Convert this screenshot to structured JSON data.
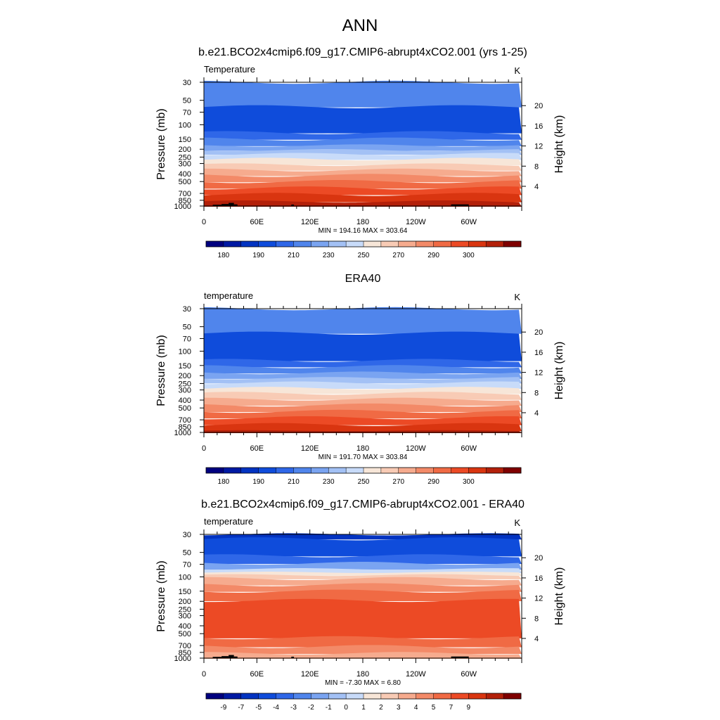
{
  "figure": {
    "title": "ANN"
  },
  "colors": {
    "temperature_scale": [
      "#00007f",
      "#0019a3",
      "#0233c1",
      "#0f4cdb",
      "#2f67e8",
      "#5085ec",
      "#7aa4f1",
      "#a3c1f5",
      "#c8dbf9",
      "#f7e6d8",
      "#f8cbb5",
      "#f6ab8e",
      "#f38a68",
      "#f06a44",
      "#ec4a25",
      "#d93510",
      "#b3200a",
      "#7f0000"
    ],
    "difference_scale": [
      "#00007f",
      "#0019a3",
      "#0233c1",
      "#0f4cdb",
      "#2f67e8",
      "#5085ec",
      "#7aa4f1",
      "#a3c1f5",
      "#c8dbf9",
      "#f7e6d8",
      "#f8cbb5",
      "#f6ab8e",
      "#f38a68",
      "#f06a44",
      "#ec4a25",
      "#d93510",
      "#b3200a",
      "#7f0000"
    ],
    "terrain": "#000000"
  },
  "chart_data": [
    {
      "type": "heatmap",
      "title": "b.e21.BCO2x4cmip6.f09_g17.CMIP6-abrupt4xCO2.001 (yrs 1-25)",
      "variable_label": "Temperature",
      "units": "K",
      "ylabel": "Pressure (mb)",
      "y2label": "Height (km)",
      "x_ticks": [
        "0",
        "60E",
        "120E",
        "180",
        "120W",
        "60W"
      ],
      "y_ticks": [
        30,
        50,
        70,
        100,
        150,
        200,
        250,
        300,
        400,
        500,
        700,
        850,
        1000
      ],
      "y2_ticks": [
        4,
        8,
        12,
        16,
        20
      ],
      "ylim": [
        30,
        1000
      ],
      "y_scale": "log",
      "stats": "MIN = 194.16  MAX = 303.64",
      "min": 194.16,
      "max": 303.64,
      "colorbar_labels": [
        "180",
        "190",
        "210",
        "230",
        "250",
        "270",
        "290",
        "300"
      ],
      "layers": [
        {
          "p_top": 30,
          "p_bottom": 60,
          "band": 5
        },
        {
          "p_top": 60,
          "p_bottom": 125,
          "band": 3
        },
        {
          "p_top": 125,
          "p_bottom": 150,
          "band": 4
        },
        {
          "p_top": 150,
          "p_bottom": 180,
          "band": 5
        },
        {
          "p_top": 180,
          "p_bottom": 205,
          "band": 6
        },
        {
          "p_top": 205,
          "p_bottom": 230,
          "band": 7
        },
        {
          "p_top": 230,
          "p_bottom": 265,
          "band": 8
        },
        {
          "p_top": 265,
          "p_bottom": 310,
          "band": 9
        },
        {
          "p_top": 310,
          "p_bottom": 360,
          "band": 10
        },
        {
          "p_top": 360,
          "p_bottom": 420,
          "band": 11
        },
        {
          "p_top": 420,
          "p_bottom": 500,
          "band": 12
        },
        {
          "p_top": 500,
          "p_bottom": 600,
          "band": 13
        },
        {
          "p_top": 600,
          "p_bottom": 720,
          "band": 14
        },
        {
          "p_top": 720,
          "p_bottom": 880,
          "band": 15
        },
        {
          "p_top": 880,
          "p_bottom": 1000,
          "band": 16
        }
      ],
      "terrain": true
    },
    {
      "type": "heatmap",
      "title": "ERA40",
      "variable_label": "temperature",
      "units": "K",
      "ylabel": "Pressure (mb)",
      "y2label": "Height (km)",
      "x_ticks": [
        "0",
        "60E",
        "120E",
        "180",
        "120W",
        "60W"
      ],
      "y_ticks": [
        30,
        50,
        70,
        100,
        150,
        200,
        250,
        300,
        400,
        500,
        700,
        850,
        1000
      ],
      "y2_ticks": [
        4,
        8,
        12,
        16,
        20
      ],
      "ylim": [
        30,
        1000
      ],
      "y_scale": "log",
      "stats": "MIN = 191.70  MAX = 303.84",
      "min": 191.7,
      "max": 303.84,
      "colorbar_labels": [
        "180",
        "190",
        "210",
        "230",
        "250",
        "270",
        "290",
        "300"
      ],
      "layers": [
        {
          "p_top": 30,
          "p_bottom": 60,
          "band": 5
        },
        {
          "p_top": 60,
          "p_bottom": 130,
          "band": 3
        },
        {
          "p_top": 130,
          "p_bottom": 155,
          "band": 4
        },
        {
          "p_top": 155,
          "p_bottom": 185,
          "band": 5
        },
        {
          "p_top": 185,
          "p_bottom": 215,
          "band": 6
        },
        {
          "p_top": 215,
          "p_bottom": 245,
          "band": 7
        },
        {
          "p_top": 245,
          "p_bottom": 285,
          "band": 8
        },
        {
          "p_top": 285,
          "p_bottom": 330,
          "band": 9
        },
        {
          "p_top": 330,
          "p_bottom": 390,
          "band": 10
        },
        {
          "p_top": 390,
          "p_bottom": 460,
          "band": 11
        },
        {
          "p_top": 460,
          "p_bottom": 550,
          "band": 12
        },
        {
          "p_top": 550,
          "p_bottom": 660,
          "band": 13
        },
        {
          "p_top": 660,
          "p_bottom": 800,
          "band": 14
        },
        {
          "p_top": 800,
          "p_bottom": 950,
          "band": 15
        },
        {
          "p_top": 950,
          "p_bottom": 1000,
          "band": 16
        }
      ],
      "terrain": false
    },
    {
      "type": "heatmap",
      "title": "b.e21.BCO2x4cmip6.f09_g17.CMIP6-abrupt4xCO2.001 - ERA40",
      "variable_label": "temperature",
      "units": "K",
      "ylabel": "Pressure (mb)",
      "y2label": "Height (km)",
      "x_ticks": [
        "0",
        "60E",
        "120E",
        "180",
        "120W",
        "60W"
      ],
      "y_ticks": [
        30,
        50,
        70,
        100,
        150,
        200,
        250,
        300,
        400,
        500,
        700,
        850,
        1000
      ],
      "y2_ticks": [
        4,
        8,
        12,
        16,
        20
      ],
      "ylim": [
        30,
        1000
      ],
      "y_scale": "log",
      "stats": "MIN = -7.30  MAX =   6.80",
      "min": -7.3,
      "max": 6.8,
      "colorbar_labels": [
        "-9",
        "-7",
        "-5",
        "-4",
        "-3",
        "-2",
        "-1",
        "0",
        "1",
        "2",
        "3",
        "4",
        "5",
        "7",
        "9"
      ],
      "layers": [
        {
          "p_top": 30,
          "p_bottom": 34,
          "band": 2
        },
        {
          "p_top": 34,
          "p_bottom": 55,
          "band": 3
        },
        {
          "p_top": 55,
          "p_bottom": 68,
          "band": 4
        },
        {
          "p_top": 68,
          "p_bottom": 80,
          "band": 6
        },
        {
          "p_top": 80,
          "p_bottom": 88,
          "band": 8
        },
        {
          "p_top": 88,
          "p_bottom": 95,
          "band": 9
        },
        {
          "p_top": 95,
          "p_bottom": 105,
          "band": 10
        },
        {
          "p_top": 105,
          "p_bottom": 125,
          "band": 11
        },
        {
          "p_top": 125,
          "p_bottom": 150,
          "band": 12
        },
        {
          "p_top": 150,
          "p_bottom": 195,
          "band": 13
        },
        {
          "p_top": 195,
          "p_bottom": 560,
          "band": 14
        },
        {
          "p_top": 560,
          "p_bottom": 720,
          "band": 13
        },
        {
          "p_top": 720,
          "p_bottom": 870,
          "band": 12
        },
        {
          "p_top": 870,
          "p_bottom": 1000,
          "band": 11
        }
      ],
      "terrain": true
    }
  ]
}
